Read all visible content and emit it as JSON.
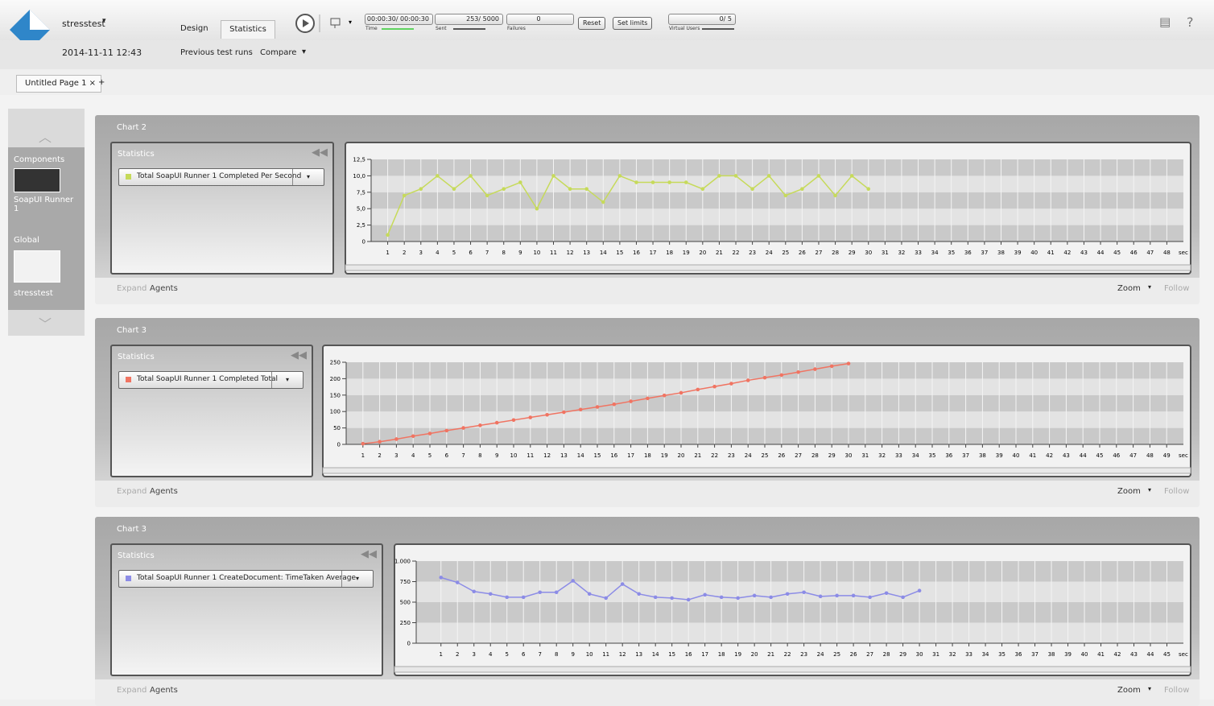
{
  "header": {
    "app": "stresstest",
    "date": "2014-11-11 12:43",
    "tabs": [
      "Design",
      "Statistics"
    ],
    "time": "00:00:30/ 00:00:30",
    "time_label": "Time",
    "sent": "253/ 5000",
    "sent_label": "Sent",
    "failures": "0",
    "failures_label": "Failures",
    "buttons": [
      "Reset",
      "Set limits"
    ],
    "users": "0/ 5",
    "users_label": "Virtual Users",
    "links": [
      "Previous test runs",
      "Compare"
    ]
  },
  "page_tabs": [
    "Untitled Page 1",
    "+"
  ],
  "sidebar": {
    "items": [
      {
        "group": "Components",
        "label": "SoapUI Runner 1"
      },
      {
        "group": "Global",
        "label": "stresstest"
      }
    ]
  },
  "panel": {
    "stats_title": "Statistics",
    "footer": [
      "Expand",
      "Agents"
    ],
    "zoom": "Zoom",
    "follow": "Follow"
  },
  "chart_data": [
    {
      "type": "line",
      "title": "Chart 2",
      "series": [
        {
          "name": "Total SoapUI Runner 1 Completed Per Second",
          "color": "#c6da5a",
          "x": [
            1,
            2,
            3,
            4,
            5,
            6,
            7,
            8,
            9,
            10,
            11,
            12,
            13,
            14,
            15,
            16,
            17,
            18,
            19,
            20,
            21,
            22,
            23,
            24,
            25,
            26,
            27,
            28,
            29,
            30
          ],
          "values": [
            1,
            7,
            8,
            10,
            8,
            10,
            7,
            8,
            9,
            5,
            10,
            8,
            8,
            6,
            10,
            9,
            9,
            9,
            9,
            8,
            10,
            10,
            8,
            10,
            7,
            8,
            10,
            7,
            10,
            8
          ]
        }
      ],
      "xlim": [
        0,
        49
      ],
      "xticks": [
        1,
        2,
        3,
        4,
        5,
        6,
        7,
        8,
        9,
        10,
        11,
        12,
        13,
        14,
        15,
        16,
        17,
        18,
        19,
        20,
        21,
        22,
        23,
        24,
        25,
        26,
        27,
        28,
        29,
        30,
        31,
        32,
        33,
        34,
        35,
        36,
        37,
        38,
        39,
        40,
        41,
        42,
        43,
        44,
        45,
        46,
        47,
        48
      ],
      "x_unit": "sec",
      "ylim": [
        0,
        12.5
      ],
      "yticks": [
        0,
        {
          "value": 2.5,
          "label": "2,5"
        },
        {
          "value": 5,
          "label": "5,0"
        },
        {
          "value": 7.5,
          "label": "7,5"
        },
        {
          "value": 10,
          "label": "10,0"
        },
        {
          "value": 12.5,
          "label": "12,5"
        }
      ],
      "grid": true
    },
    {
      "type": "line",
      "title": "Chart 3",
      "series": [
        {
          "name": "Total SoapUI Runner 1 Completed Total",
          "color": "#f07462",
          "x": [
            1,
            2,
            3,
            4,
            5,
            6,
            7,
            8,
            9,
            10,
            11,
            12,
            13,
            14,
            15,
            16,
            17,
            18,
            19,
            20,
            21,
            22,
            23,
            24,
            25,
            26,
            27,
            28,
            29,
            30
          ],
          "values": [
            2,
            8,
            16,
            25,
            33,
            42,
            50,
            58,
            66,
            74,
            82,
            90,
            98,
            106,
            114,
            122,
            131,
            140,
            149,
            157,
            167,
            176,
            185,
            195,
            203,
            211,
            220,
            229,
            238,
            246
          ]
        }
      ],
      "xlim": [
        0,
        50
      ],
      "xticks": [
        1,
        2,
        3,
        4,
        5,
        6,
        7,
        8,
        9,
        10,
        11,
        12,
        13,
        14,
        15,
        16,
        17,
        18,
        19,
        20,
        21,
        22,
        23,
        24,
        25,
        26,
        27,
        28,
        29,
        30,
        31,
        32,
        33,
        34,
        35,
        36,
        37,
        38,
        39,
        40,
        41,
        42,
        43,
        44,
        45,
        46,
        47,
        48,
        49
      ],
      "x_unit": "sec",
      "ylim": [
        0,
        250
      ],
      "yticks": [
        0,
        50,
        100,
        150,
        200,
        250
      ],
      "grid": true
    },
    {
      "type": "line",
      "title": "Chart 3",
      "series": [
        {
          "name": "Total SoapUI Runner 1 CreateDocument: TimeTaken Average",
          "color": "#8c8ce6",
          "x": [
            1,
            2,
            3,
            4,
            5,
            6,
            7,
            8,
            9,
            10,
            11,
            12,
            13,
            14,
            15,
            16,
            17,
            18,
            19,
            20,
            21,
            22,
            23,
            24,
            25,
            26,
            27,
            28,
            29,
            30
          ],
          "values": [
            800,
            740,
            630,
            600,
            560,
            560,
            620,
            620,
            760,
            600,
            550,
            720,
            600,
            560,
            550,
            530,
            590,
            560,
            550,
            580,
            560,
            600,
            620,
            570,
            580,
            580,
            560,
            610,
            560,
            640
          ]
        }
      ],
      "xlim": [
        -0.5,
        46
      ],
      "xticks": [
        1,
        2,
        3,
        4,
        5,
        6,
        7,
        8,
        9,
        10,
        11,
        12,
        13,
        14,
        15,
        16,
        17,
        18,
        19,
        20,
        21,
        22,
        23,
        24,
        25,
        26,
        27,
        28,
        29,
        30,
        31,
        32,
        33,
        34,
        35,
        36,
        37,
        38,
        39,
        40,
        41,
        42,
        43,
        44,
        45
      ],
      "x_unit": "sec",
      "ylim": [
        0,
        1000
      ],
      "yticks": [
        0,
        250,
        500,
        750,
        {
          "value": 1000,
          "label": "1.000"
        }
      ],
      "grid": true
    }
  ]
}
